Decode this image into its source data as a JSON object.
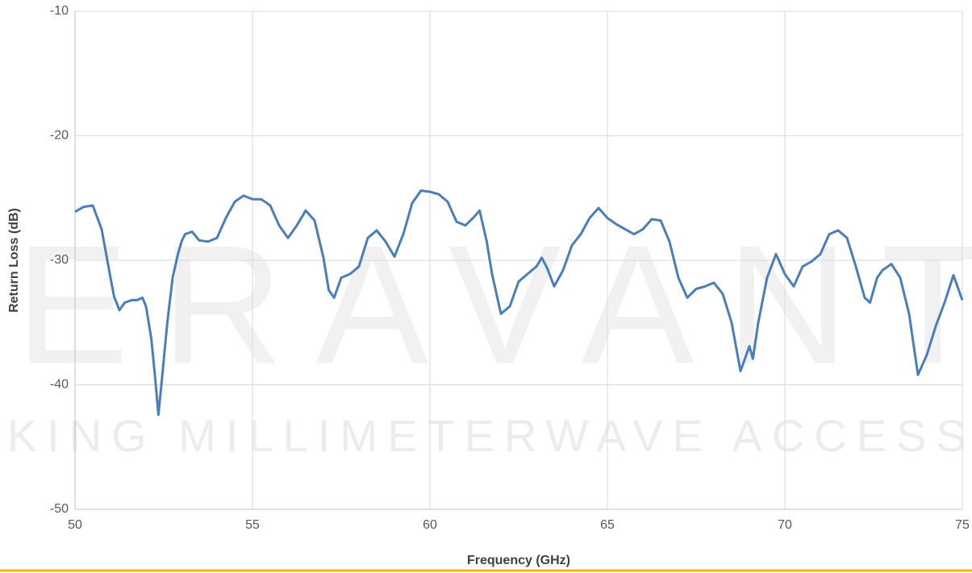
{
  "chart_data": {
    "type": "line",
    "x_label": "Frequency (GHz)",
    "y_label": "Return Loss (dB)",
    "watermark": [
      "ERAVANT",
      "MAKING MILLIMETERWAVE ACCESSIBLE"
    ],
    "xlim": [
      50,
      75
    ],
    "xticks": [
      50,
      55,
      60,
      65,
      70,
      75
    ],
    "ylim": [
      -50,
      -10
    ],
    "yticks": [
      -50,
      -40,
      -30,
      -20,
      -10
    ],
    "grid": true,
    "x": [
      50,
      50.25,
      50.5,
      50.75,
      51,
      51.1,
      51.25,
      51.4,
      51.6,
      51.75,
      51.9,
      52,
      52.15,
      52.25,
      52.35,
      52.45,
      52.6,
      52.75,
      52.9,
      53,
      53.1,
      53.3,
      53.5,
      53.75,
      54,
      54.25,
      54.5,
      54.75,
      55,
      55.25,
      55.5,
      55.75,
      56,
      56.25,
      56.5,
      56.75,
      57,
      57.15,
      57.3,
      57.5,
      57.75,
      58,
      58.25,
      58.5,
      58.75,
      59,
      59.25,
      59.5,
      59.75,
      60,
      60.25,
      60.5,
      60.75,
      61,
      61.25,
      61.4,
      61.6,
      61.75,
      62,
      62.25,
      62.5,
      62.75,
      63,
      63.15,
      63.3,
      63.5,
      63.75,
      64,
      64.25,
      64.5,
      64.75,
      65,
      65.25,
      65.5,
      65.75,
      66,
      66.25,
      66.5,
      66.75,
      67,
      67.25,
      67.5,
      67.75,
      68,
      68.25,
      68.5,
      68.75,
      69,
      69.1,
      69.25,
      69.5,
      69.75,
      70,
      70.25,
      70.5,
      70.75,
      71,
      71.25,
      71.5,
      71.75,
      72,
      72.25,
      72.4,
      72.6,
      72.75,
      73,
      73.25,
      73.5,
      73.75,
      74,
      74.25,
      74.5,
      74.75,
      75
    ],
    "series": [
      {
        "name": "Return Loss",
        "color": "#4a7ebb",
        "values": [
          -26.1,
          -25.7,
          -25.6,
          -27.5,
          -31.4,
          -32.9,
          -34.0,
          -33.4,
          -33.2,
          -33.2,
          -33.0,
          -33.7,
          -36.3,
          -39.2,
          -42.4,
          -39.5,
          -35.0,
          -31.4,
          -29.5,
          -28.5,
          -27.9,
          -27.7,
          -28.4,
          -28.5,
          -28.2,
          -26.6,
          -25.3,
          -24.8,
          -25.1,
          -25.1,
          -25.6,
          -27.2,
          -28.2,
          -27.2,
          -26.0,
          -26.8,
          -29.8,
          -32.4,
          -33.0,
          -31.4,
          -31.1,
          -30.5,
          -28.2,
          -27.6,
          -28.5,
          -29.7,
          -27.9,
          -25.4,
          -24.4,
          -24.5,
          -24.7,
          -25.3,
          -26.9,
          -27.2,
          -26.5,
          -26.0,
          -28.5,
          -31.1,
          -34.3,
          -33.7,
          -31.7,
          -31.1,
          -30.5,
          -29.8,
          -30.6,
          -32.1,
          -30.8,
          -28.8,
          -27.9,
          -26.6,
          -25.8,
          -26.6,
          -27.1,
          -27.5,
          -27.9,
          -27.5,
          -26.7,
          -26.8,
          -28.5,
          -31.4,
          -33.0,
          -32.3,
          -32.1,
          -31.8,
          -32.7,
          -35.0,
          -38.9,
          -36.9,
          -37.9,
          -35.0,
          -31.4,
          -29.5,
          -31.1,
          -32.1,
          -30.5,
          -30.1,
          -29.5,
          -27.9,
          -27.6,
          -28.2,
          -30.5,
          -33.0,
          -33.4,
          -31.4,
          -30.8,
          -30.3,
          -31.4,
          -34.3,
          -39.2,
          -37.6,
          -35.3,
          -33.4,
          -31.2,
          -33.2
        ]
      }
    ]
  }
}
